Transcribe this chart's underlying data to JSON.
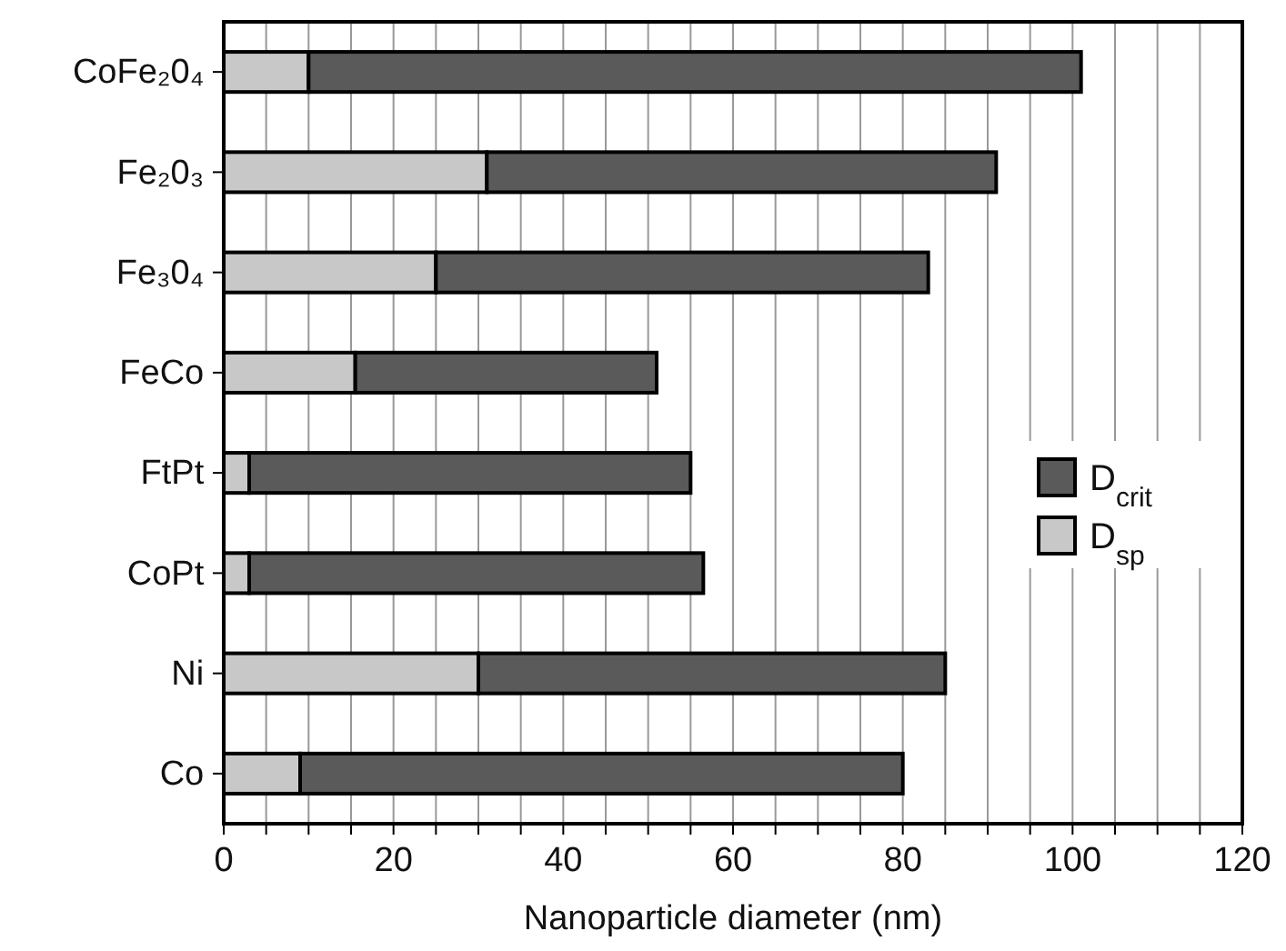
{
  "chart_data": {
    "type": "bar",
    "orientation": "horizontal",
    "stacked": true,
    "xlabel": "Nanoparticle diameter (nm)",
    "categories": [
      "CoFe₂0₄",
      "Fe₂0₃",
      "Fe₃0₄",
      "FeCo",
      "FtPt",
      "CoPt",
      "Ni",
      "Co"
    ],
    "series": [
      {
        "name": "D$_{sp}$",
        "color": "#c8c8c8",
        "values": [
          10,
          31,
          25,
          15.5,
          3,
          3,
          30,
          9
        ]
      },
      {
        "name": "D$_{crit}$",
        "color": "#5a5a5a",
        "values": [
          91,
          60,
          58,
          35.5,
          52,
          53.5,
          55,
          71
        ]
      }
    ],
    "xlim": [
      0,
      120
    ],
    "xticks": [
      0,
      {
        "value": 5,
        "label": null
      },
      {
        "value": 10,
        "label": null
      },
      {
        "value": 15,
        "label": null
      },
      20,
      {
        "value": 25,
        "label": null
      },
      {
        "value": 30,
        "label": null
      },
      {
        "value": 35,
        "label": null
      },
      40,
      {
        "value": 45,
        "label": null
      },
      {
        "value": 50,
        "label": null
      },
      {
        "value": 55,
        "label": null
      },
      60,
      {
        "value": 65,
        "label": null
      },
      {
        "value": 70,
        "label": null
      },
      {
        "value": 75,
        "label": null
      },
      80,
      {
        "value": 85,
        "label": null
      },
      {
        "value": 90,
        "label": null
      },
      {
        "value": 95,
        "label": null
      },
      100,
      {
        "value": 105,
        "label": null
      },
      {
        "value": 110,
        "label": null
      },
      {
        "value": 115,
        "label": null
      },
      120
    ],
    "grid": "x",
    "legend": "right"
  }
}
